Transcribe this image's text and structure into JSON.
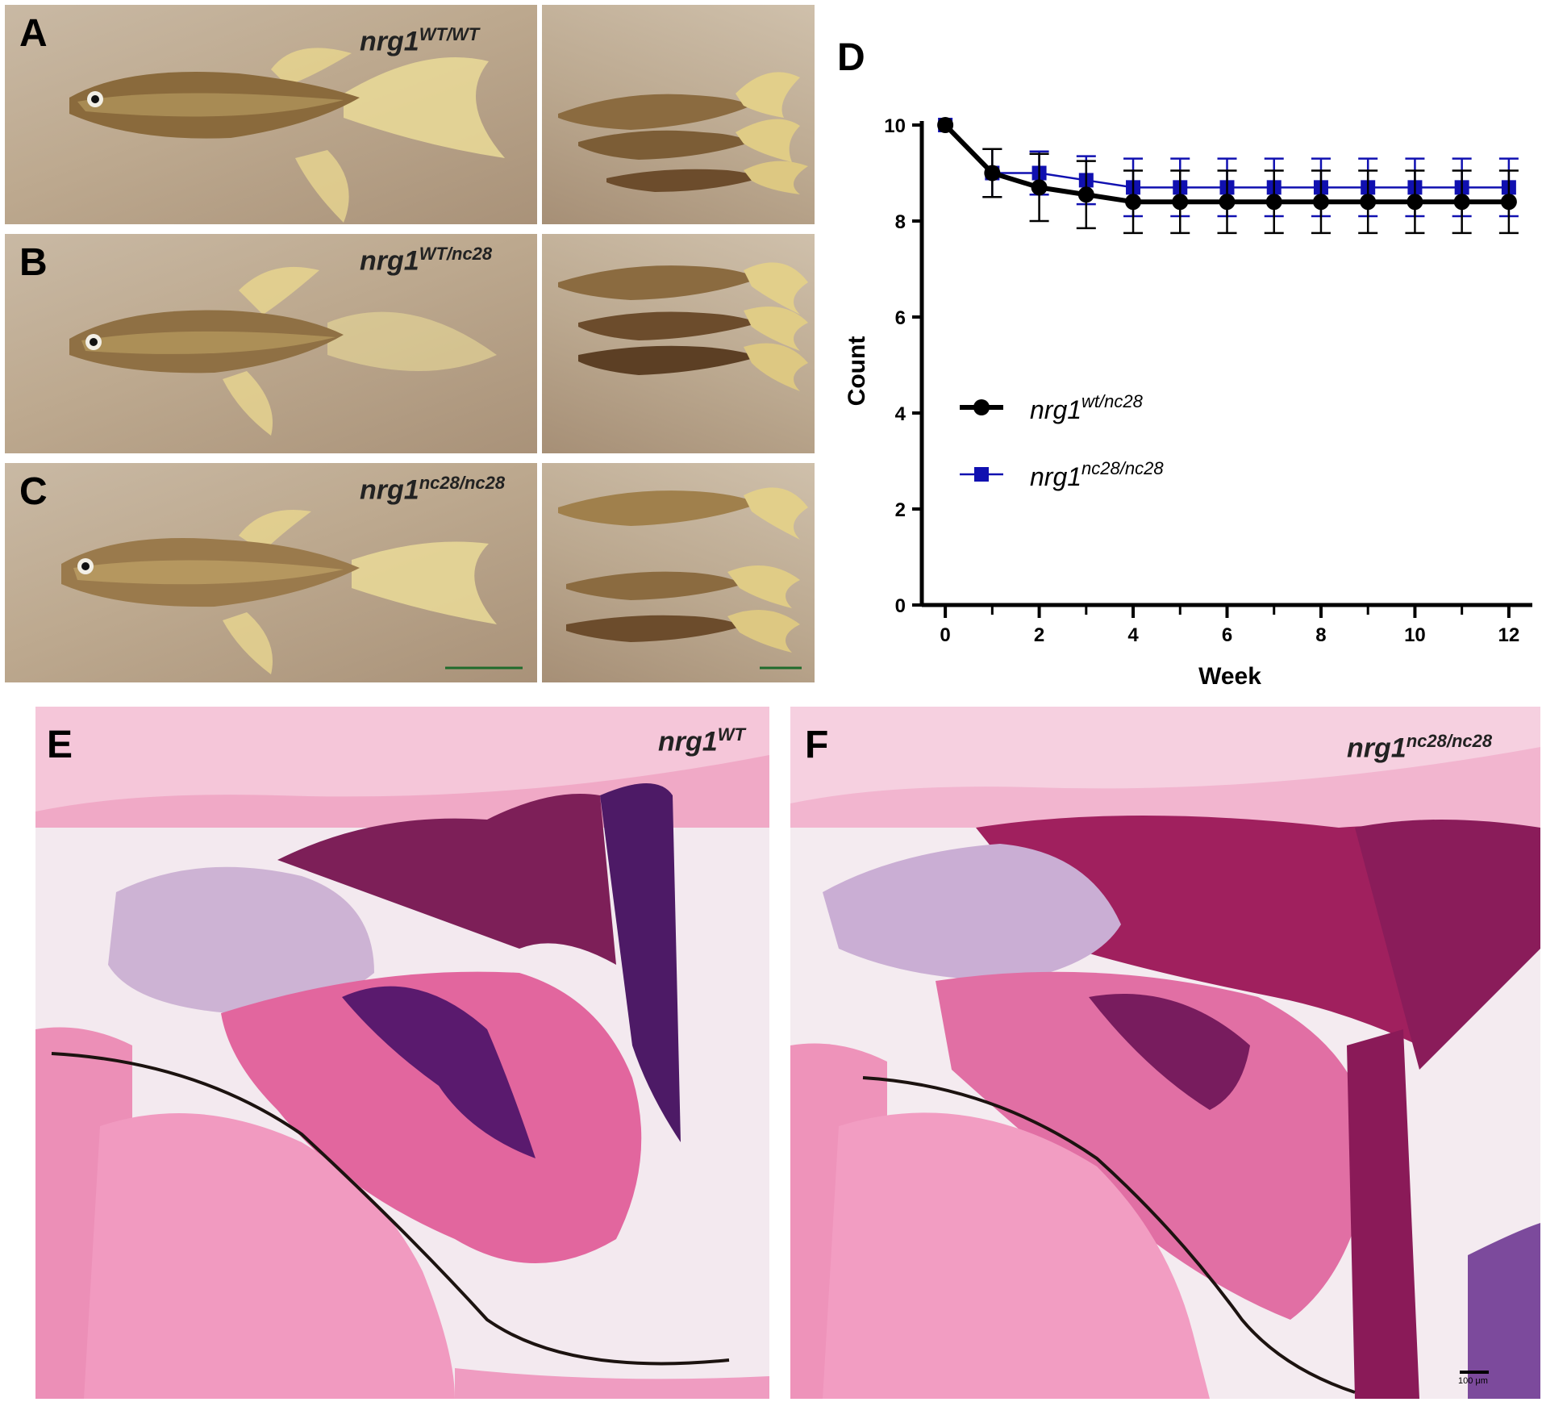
{
  "panels": {
    "A": {
      "letter": "A",
      "genotype_base": "nrg1",
      "genotype_sup": "WT/WT"
    },
    "B": {
      "letter": "B",
      "genotype_base": "nrg1",
      "genotype_sup": "WT/nc28"
    },
    "C": {
      "letter": "C",
      "genotype_base": "nrg1",
      "genotype_sup": "nc28/nc28"
    },
    "D": {
      "letter": "D"
    },
    "E": {
      "letter": "E",
      "genotype_base": "nrg1",
      "genotype_sup": "WT"
    },
    "F": {
      "letter": "F",
      "genotype_base": "nrg1",
      "genotype_sup": "nc28/nc28",
      "scale_label": "100 μm"
    }
  },
  "colors": {
    "series_wt_nc28": "#000000",
    "series_nc28_nc28": "#1010b0",
    "histo_pink": "#e87fb0",
    "histo_purple": "#5a1a6e"
  },
  "chart_data": {
    "type": "line",
    "xlabel": "Week",
    "ylabel": "Count",
    "xlim": [
      -0.5,
      12.5
    ],
    "ylim": [
      0,
      10
    ],
    "xticks": [
      0,
      2,
      4,
      6,
      8,
      10,
      12
    ],
    "yticks": [
      0,
      2,
      4,
      6,
      8,
      10
    ],
    "grid": false,
    "legend_position": "middle-left",
    "x": [
      0,
      1,
      2,
      3,
      4,
      5,
      6,
      7,
      8,
      9,
      10,
      11,
      12
    ],
    "series": [
      {
        "legend_base": "nrg1",
        "legend_sup": "wt/nc28",
        "marker": "circle",
        "values": [
          10,
          9.0,
          8.7,
          8.55,
          8.4,
          8.4,
          8.4,
          8.4,
          8.4,
          8.4,
          8.4,
          8.4,
          8.4
        ],
        "errors": [
          0,
          0.5,
          0.7,
          0.7,
          0.65,
          0.65,
          0.65,
          0.65,
          0.65,
          0.65,
          0.65,
          0.65,
          0.65
        ]
      },
      {
        "legend_base": "nrg1",
        "legend_sup": "nc28/nc28",
        "marker": "square",
        "values": [
          10,
          9.0,
          9.0,
          8.85,
          8.7,
          8.7,
          8.7,
          8.7,
          8.7,
          8.7,
          8.7,
          8.7,
          8.7
        ],
        "errors": [
          0,
          0.5,
          0.45,
          0.5,
          0.6,
          0.6,
          0.6,
          0.6,
          0.6,
          0.6,
          0.6,
          0.6,
          0.6
        ]
      }
    ]
  }
}
